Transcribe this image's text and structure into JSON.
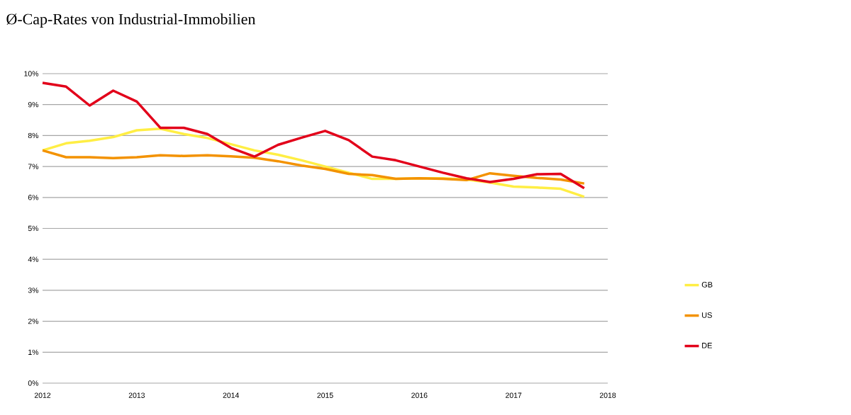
{
  "chart_data": {
    "type": "line",
    "title": "Ø-Cap-Rates von Industrial-Immobilien",
    "x": [
      2012,
      2012.25,
      2012.5,
      2012.75,
      2013,
      2013.25,
      2013.5,
      2013.75,
      2014,
      2014.25,
      2014.5,
      2014.75,
      2015,
      2015.25,
      2015.5,
      2015.75,
      2016,
      2016.25,
      2016.5,
      2016.75,
      2017,
      2017.25,
      2017.5,
      2017.75
    ],
    "series": [
      {
        "name": "GB",
        "color": "#ffee44",
        "values": [
          7.52,
          7.75,
          7.83,
          7.95,
          8.17,
          8.22,
          8.05,
          7.92,
          7.72,
          7.52,
          7.38,
          7.2,
          7.0,
          6.8,
          6.6,
          6.6,
          6.62,
          6.62,
          6.58,
          6.48,
          6.35,
          6.32,
          6.28,
          6.02
        ]
      },
      {
        "name": "US",
        "color": "#f39200",
        "values": [
          7.52,
          7.3,
          7.3,
          7.27,
          7.3,
          7.36,
          7.34,
          7.36,
          7.33,
          7.28,
          7.17,
          7.03,
          6.92,
          6.76,
          6.72,
          6.6,
          6.62,
          6.6,
          6.56,
          6.78,
          6.7,
          6.63,
          6.58,
          6.45
        ]
      },
      {
        "name": "DE",
        "color": "#e2001a",
        "values": [
          9.7,
          9.58,
          8.97,
          9.45,
          9.1,
          8.25,
          8.25,
          8.05,
          7.6,
          7.32,
          7.7,
          7.93,
          8.15,
          7.85,
          7.32,
          7.2,
          7.0,
          6.8,
          6.62,
          6.5,
          6.6,
          6.75,
          6.76,
          6.3
        ]
      }
    ],
    "xlim": [
      2012,
      2018
    ],
    "xticks": [
      2012,
      2013,
      2014,
      2015,
      2016,
      2017,
      2018
    ],
    "ylim": [
      0,
      10
    ],
    "yticks": [
      {
        "value": 0,
        "label": "0%"
      },
      {
        "value": 1,
        "label": "1%"
      },
      {
        "value": 2,
        "label": "2%"
      },
      {
        "value": 3,
        "label": "3%"
      },
      {
        "value": 4,
        "label": "4%"
      },
      {
        "value": 5,
        "label": "5%"
      },
      {
        "value": 6,
        "label": "6%"
      },
      {
        "value": 7,
        "label": "7%"
      },
      {
        "value": 8,
        "label": "8%"
      },
      {
        "value": 9,
        "label": "9%"
      },
      {
        "value": 10,
        "label": "10%"
      }
    ],
    "grid": "y",
    "legend": "right",
    "marker": "none",
    "line_style": "solid"
  }
}
